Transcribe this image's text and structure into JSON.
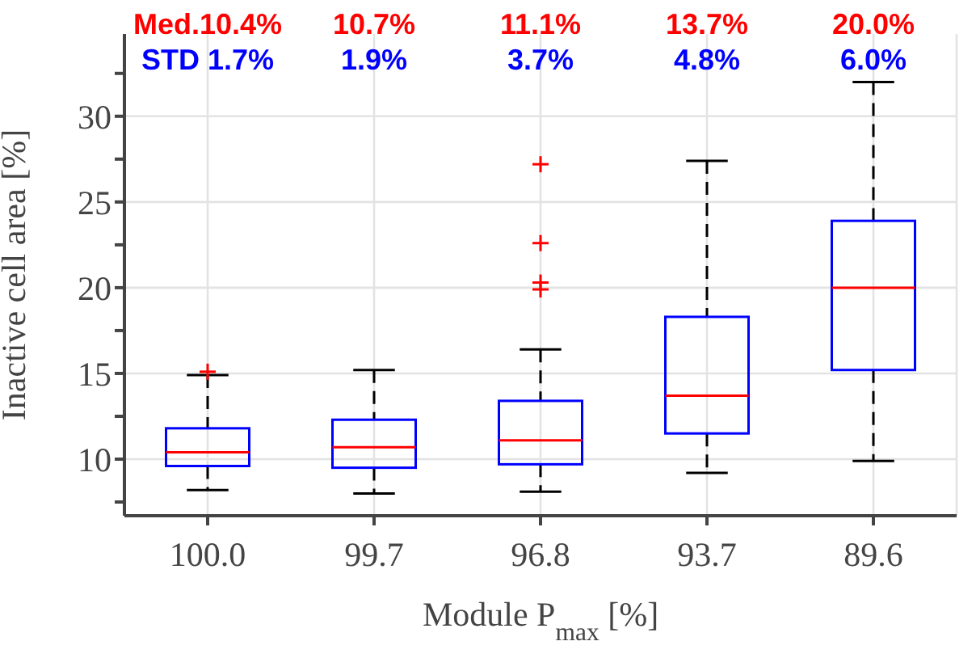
{
  "chart_data": {
    "type": "box",
    "xlabel": "Module P$_{max}$ [%]",
    "ylabel": "Inactive cell area [%]",
    "categories": [
      "100.0",
      "99.7",
      "96.8",
      "93.7",
      "89.6"
    ],
    "series": [
      {
        "color": "#0000ff",
        "boxes": [
          {
            "low": 8.2,
            "q1": 9.6,
            "median": 10.4,
            "q3": 11.8,
            "high": 14.9,
            "outliers": [
              15.1
            ]
          },
          {
            "low": 8.0,
            "q1": 9.5,
            "median": 10.7,
            "q3": 12.3,
            "high": 15.2
          },
          {
            "low": 8.1,
            "q1": 9.7,
            "median": 11.1,
            "q3": 13.4,
            "high": 16.4,
            "outliers": [
              19.9,
              20.3,
              22.6,
              27.2
            ]
          },
          {
            "low": 9.2,
            "q1": 11.5,
            "median": 13.7,
            "q3": 18.3,
            "high": 27.4
          },
          {
            "low": 9.9,
            "q1": 15.2,
            "median": 20.0,
            "q3": 23.9,
            "high": 32.0
          }
        ]
      }
    ],
    "ylim": [
      6.7,
      34.8
    ],
    "yticks": [
      {
        "value": 7.5,
        "label": null
      },
      10,
      {
        "value": 12.5,
        "label": null
      },
      15,
      {
        "value": 17.5,
        "label": null
      },
      20,
      {
        "value": 22.5,
        "label": null
      },
      25,
      {
        "value": 27.5,
        "label": null
      },
      30,
      {
        "value": 32.5,
        "label": null
      }
    ],
    "grid": true,
    "annotations": [
      "Med.10.4%",
      "10.7%",
      "11.1%",
      "13.7%",
      "20.0%",
      "STD 1.7%",
      "1.9%",
      "3.7%",
      "4.8%",
      "6.0%"
    ]
  }
}
